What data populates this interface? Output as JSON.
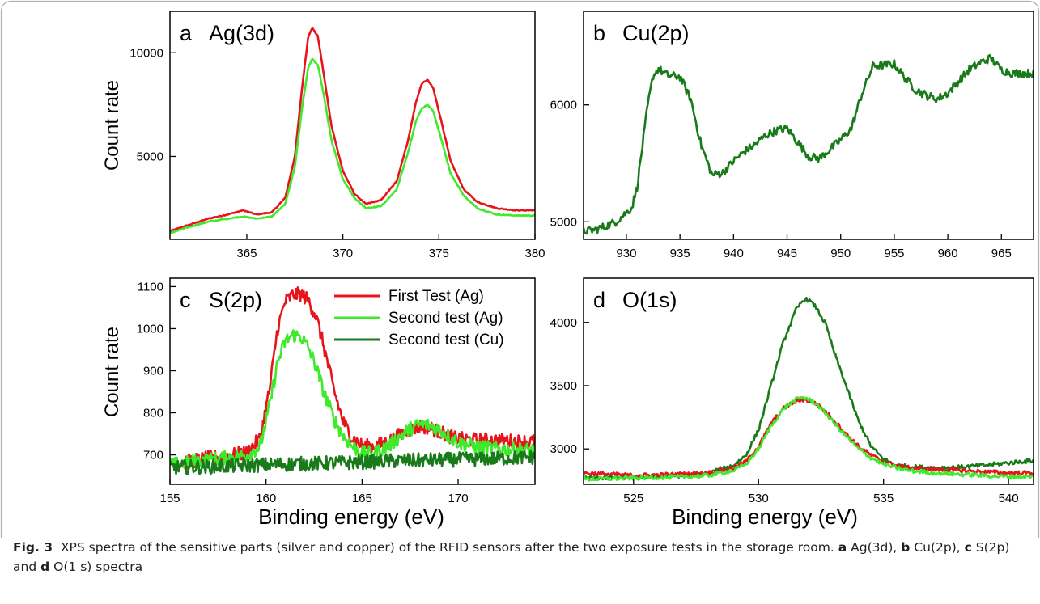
{
  "figure": {
    "xlabel_left": "Binding energy (eV)",
    "xlabel_right": "Binding energy (eV)",
    "ylabel_top": "Count rate",
    "ylabel_bottom": "Count rate",
    "caption": {
      "fig_label": "Fig. 3",
      "text1": "XPS spectra of the sensitive parts (silver and copper) of the RFID sensors after the two exposure tests in the storage room.",
      "a": "a",
      "a_text": "Ag(3d),",
      "b": "b",
      "b_text": "Cu(2p),",
      "c": "c",
      "c_text": "S(2p) and",
      "d": "d",
      "d_text": "O(1 s) spectra"
    }
  },
  "colors": {
    "first_ag": "#e8141b",
    "second_ag": "#3fe92b",
    "second_cu": "#187a18",
    "axis": "#000000"
  },
  "chart_data": [
    {
      "id": "a",
      "panel_label": "a",
      "title": "Ag(3d)",
      "type": "line",
      "xlim": [
        361,
        380
      ],
      "ylim": [
        1000,
        12000
      ],
      "xticks": [
        365,
        370,
        375,
        380
      ],
      "yticks": [
        5000,
        10000
      ],
      "series": [
        {
          "key": "first_ag",
          "x": [
            361,
            362,
            363,
            364,
            364.8,
            365.5,
            366.3,
            367,
            367.5,
            367.9,
            368.2,
            368.4,
            368.7,
            369,
            369.4,
            370,
            370.6,
            371.2,
            372,
            372.8,
            373.4,
            373.8,
            374.1,
            374.4,
            374.7,
            375.1,
            375.6,
            376.3,
            377,
            378,
            379,
            380
          ],
          "y": [
            1400,
            1700,
            2000,
            2200,
            2400,
            2200,
            2300,
            3000,
            5000,
            8500,
            10800,
            11200,
            10800,
            9000,
            6500,
            4300,
            3200,
            2700,
            2900,
            3800,
            5800,
            7600,
            8500,
            8700,
            8300,
            6800,
            4800,
            3400,
            2800,
            2500,
            2400,
            2400
          ]
        },
        {
          "key": "second_ag",
          "x": [
            361,
            362,
            363,
            364,
            364.8,
            365.5,
            366.3,
            367,
            367.5,
            367.9,
            368.2,
            368.4,
            368.7,
            369,
            369.4,
            370,
            370.6,
            371.2,
            372,
            372.8,
            373.4,
            373.8,
            374.1,
            374.4,
            374.7,
            375.1,
            375.6,
            376.3,
            377,
            378,
            379,
            380
          ],
          "y": [
            1300,
            1600,
            1850,
            2000,
            2100,
            2000,
            2100,
            2700,
            4500,
            7500,
            9300,
            9700,
            9400,
            8000,
            5800,
            3900,
            3000,
            2500,
            2600,
            3400,
            5200,
            6700,
            7300,
            7500,
            7200,
            5900,
            4200,
            3100,
            2500,
            2200,
            2150,
            2150
          ]
        }
      ]
    },
    {
      "id": "b",
      "panel_label": "b",
      "title": "Cu(2p)",
      "type": "line",
      "xlim": [
        926,
        968
      ],
      "ylim": [
        4850,
        6800
      ],
      "xticks": [
        930,
        935,
        940,
        945,
        950,
        955,
        960,
        965
      ],
      "yticks": [
        5000,
        6000
      ],
      "series": [
        {
          "key": "second_cu",
          "x": [
            926,
            927,
            928,
            929,
            930,
            930.5,
            931,
            931.5,
            932,
            932.5,
            933,
            933.5,
            934,
            935,
            936,
            937,
            938,
            939,
            940,
            941,
            942,
            943,
            944,
            945,
            946,
            947,
            948,
            949,
            950,
            951,
            952,
            953,
            954,
            955,
            956,
            957,
            958,
            959,
            960,
            961,
            962,
            963,
            964,
            965,
            966,
            967,
            968
          ],
          "y": [
            4920,
            4930,
            4960,
            5000,
            5080,
            5120,
            5300,
            5650,
            6000,
            6250,
            6310,
            6270,
            6250,
            6240,
            6050,
            5650,
            5400,
            5420,
            5520,
            5600,
            5660,
            5740,
            5780,
            5800,
            5680,
            5560,
            5540,
            5620,
            5700,
            5800,
            6100,
            6330,
            6340,
            6350,
            6230,
            6130,
            6080,
            6050,
            6100,
            6200,
            6300,
            6360,
            6400,
            6300,
            6270,
            6270,
            6270
          ]
        }
      ]
    },
    {
      "id": "c",
      "panel_label": "c",
      "title": "S(2p)",
      "type": "line",
      "xlim": [
        155,
        174
      ],
      "ylim": [
        630,
        1120
      ],
      "xticks": [
        155,
        160,
        165,
        170
      ],
      "yticks": [
        700,
        800,
        900,
        1000,
        1100
      ],
      "legend": {
        "position": "top-right",
        "entries": [
          {
            "key": "first_ag",
            "label": "First Test (Ag)"
          },
          {
            "key": "second_ag",
            "label": "Second test (Ag)"
          },
          {
            "key": "second_cu",
            "label": "Second test (Cu)"
          }
        ]
      },
      "series": [
        {
          "key": "first_ag",
          "name": "First Test (Ag)",
          "x": [
            155,
            156,
            157,
            158,
            159,
            159.7,
            160.2,
            160.6,
            161,
            161.4,
            161.8,
            162.2,
            162.6,
            163,
            163.5,
            164,
            164.5,
            165,
            165.5,
            166,
            166.5,
            167,
            167.5,
            168,
            168.5,
            169,
            169.5,
            170,
            171,
            172,
            173,
            174
          ],
          "y": [
            678,
            685,
            692,
            698,
            705,
            740,
            860,
            1000,
            1065,
            1080,
            1082,
            1068,
            1030,
            960,
            860,
            780,
            740,
            722,
            720,
            725,
            735,
            748,
            760,
            768,
            765,
            755,
            745,
            738,
            735,
            735,
            732,
            732
          ]
        },
        {
          "key": "second_ag",
          "name": "Second test (Ag)",
          "x": [
            155,
            156,
            157,
            158,
            159,
            159.7,
            160.2,
            160.6,
            161,
            161.4,
            161.8,
            162.2,
            162.6,
            163,
            163.5,
            164,
            164.5,
            165,
            165.5,
            166,
            166.5,
            167,
            167.5,
            168,
            168.5,
            169,
            169.5,
            170,
            171,
            172,
            173,
            174
          ],
          "y": [
            675,
            682,
            688,
            694,
            700,
            720,
            820,
            920,
            970,
            985,
            982,
            955,
            910,
            850,
            790,
            745,
            720,
            705,
            703,
            712,
            725,
            745,
            762,
            772,
            770,
            760,
            745,
            730,
            718,
            715,
            712,
            712
          ]
        },
        {
          "key": "second_cu",
          "name": "Second test (Cu)",
          "x": [
            155,
            157,
            159,
            161,
            163,
            165,
            167,
            169,
            171,
            173,
            174
          ],
          "y": [
            670,
            672,
            675,
            678,
            680,
            683,
            686,
            688,
            690,
            693,
            695
          ]
        }
      ]
    },
    {
      "id": "d",
      "panel_label": "d",
      "title": "O(1s)",
      "type": "line",
      "xlim": [
        523,
        541
      ],
      "ylim": [
        2720,
        4350
      ],
      "xticks": [
        525,
        530,
        535,
        540
      ],
      "yticks": [
        3000,
        3500,
        4000
      ],
      "series": [
        {
          "key": "second_cu",
          "x": [
            523,
            525,
            527,
            528,
            529,
            529.5,
            530,
            530.5,
            531,
            531.5,
            531.8,
            532,
            532.3,
            532.7,
            533,
            533.5,
            534,
            534.5,
            535,
            535.5,
            536,
            537,
            538,
            539,
            540,
            541
          ],
          "y": [
            2770,
            2775,
            2790,
            2810,
            2870,
            2950,
            3150,
            3500,
            3850,
            4100,
            4180,
            4180,
            4120,
            3980,
            3780,
            3500,
            3220,
            3020,
            2920,
            2870,
            2860,
            2850,
            2855,
            2870,
            2890,
            2910
          ]
        },
        {
          "key": "first_ag",
          "x": [
            523,
            525,
            527,
            528,
            529,
            529.5,
            530,
            530.5,
            531,
            531.5,
            531.8,
            532,
            532.3,
            532.7,
            533,
            533.5,
            534,
            534.5,
            535,
            535.5,
            536,
            537,
            538,
            539,
            540,
            541
          ],
          "y": [
            2810,
            2790,
            2800,
            2810,
            2850,
            2900,
            3020,
            3200,
            3320,
            3380,
            3390,
            3380,
            3360,
            3290,
            3230,
            3120,
            3020,
            2950,
            2900,
            2870,
            2850,
            2840,
            2830,
            2820,
            2810,
            2810
          ]
        },
        {
          "key": "second_ag",
          "x": [
            523,
            525,
            527,
            528,
            529,
            529.5,
            530,
            530.5,
            531,
            531.5,
            531.8,
            532,
            532.3,
            532.7,
            533,
            533.5,
            534,
            534.5,
            535,
            535.5,
            536,
            537,
            538,
            539,
            540,
            541
          ],
          "y": [
            2760,
            2770,
            2780,
            2790,
            2830,
            2880,
            3000,
            3180,
            3320,
            3390,
            3410,
            3390,
            3360,
            3280,
            3210,
            3100,
            3000,
            2930,
            2880,
            2850,
            2830,
            2810,
            2800,
            2790,
            2780,
            2780
          ]
        }
      ]
    }
  ]
}
